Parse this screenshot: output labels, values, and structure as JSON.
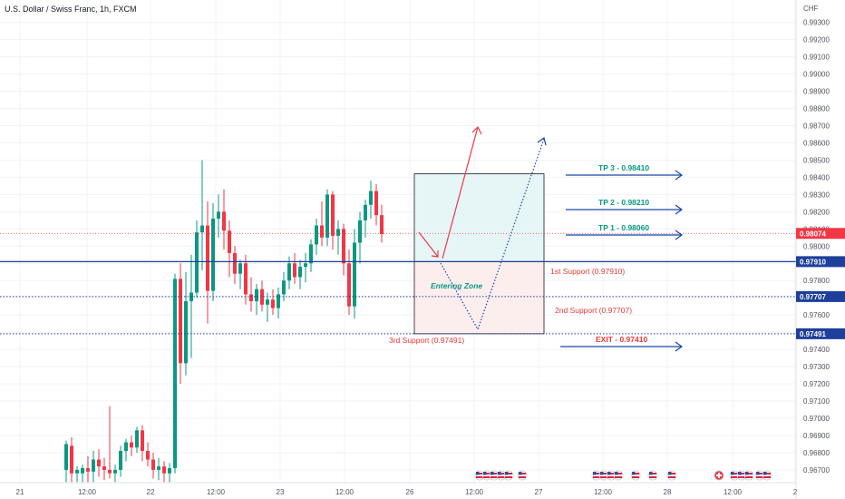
{
  "chart_data": {
    "type": "candlestick",
    "title": "U.S. Dollar / Swiss Franc, 1h, FXCM",
    "currency": "CHF",
    "ylim": [
      0.966,
      0.9944
    ],
    "y_ticks": [
      "0.99300",
      "0.99200",
      "0.99100",
      "0.99000",
      "0.98900",
      "0.98800",
      "0.98700",
      "0.98600",
      "0.98500",
      "0.98400",
      "0.98300",
      "0.98200",
      "0.98100",
      "0.98000",
      "0.97900",
      "0.97800",
      "0.97700",
      "0.97600",
      "0.97500",
      "0.97400",
      "0.97300",
      "0.97200",
      "0.97100",
      "0.97000",
      "0.96900",
      "0.96800",
      "0.96700"
    ],
    "x_ticks": [
      "21",
      "12:00",
      "22",
      "12:00",
      "23",
      "12:00",
      "26",
      "12:00",
      "27",
      "12:00",
      "28",
      "12:00",
      "2"
    ],
    "candles": [
      [
        0.967,
        0.9687,
        0.966,
        0.9685
      ],
      [
        0.9684,
        0.9689,
        0.966,
        0.9668
      ],
      [
        0.9668,
        0.9672,
        0.966,
        0.967
      ],
      [
        0.9668,
        0.9673,
        0.966,
        0.9671
      ],
      [
        0.9671,
        0.9678,
        0.966,
        0.9669
      ],
      [
        0.9669,
        0.9681,
        0.9662,
        0.9676
      ],
      [
        0.9676,
        0.9682,
        0.9666,
        0.9672
      ],
      [
        0.9672,
        0.9677,
        0.9664,
        0.967
      ],
      [
        0.967,
        0.9707,
        0.9665,
        0.9668
      ],
      [
        0.9668,
        0.9673,
        0.966,
        0.967
      ],
      [
        0.967,
        0.9684,
        0.9666,
        0.9681
      ],
      [
        0.9681,
        0.9688,
        0.9675,
        0.9686
      ],
      [
        0.9686,
        0.969,
        0.9678,
        0.9683
      ],
      [
        0.9683,
        0.9695,
        0.968,
        0.9693
      ],
      [
        0.9693,
        0.9696,
        0.9675,
        0.9681
      ],
      [
        0.9681,
        0.9686,
        0.9672,
        0.9676
      ],
      [
        0.9676,
        0.968,
        0.9665,
        0.967
      ],
      [
        0.967,
        0.9677,
        0.9664,
        0.9672
      ],
      [
        0.9672,
        0.9675,
        0.9663,
        0.9668
      ],
      [
        0.9668,
        0.9674,
        0.9662,
        0.9671
      ],
      [
        0.9671,
        0.9784,
        0.9668,
        0.9781
      ],
      [
        0.9781,
        0.979,
        0.972,
        0.9732
      ],
      [
        0.9732,
        0.9785,
        0.9725,
        0.9768
      ],
      [
        0.9768,
        0.9795,
        0.9735,
        0.9773
      ],
      [
        0.9773,
        0.9815,
        0.977,
        0.9808
      ],
      [
        0.9808,
        0.985,
        0.9786,
        0.9812
      ],
      [
        0.9812,
        0.9826,
        0.9755,
        0.9774
      ],
      [
        0.9774,
        0.9825,
        0.9768,
        0.9816
      ],
      [
        0.9816,
        0.983,
        0.9805,
        0.982
      ],
      [
        0.982,
        0.9833,
        0.9798,
        0.9809
      ],
      [
        0.9809,
        0.9815,
        0.9782,
        0.9796
      ],
      [
        0.9796,
        0.98,
        0.9778,
        0.9784
      ],
      [
        0.9784,
        0.9792,
        0.9775,
        0.979
      ],
      [
        0.979,
        0.9795,
        0.9766,
        0.9772
      ],
      [
        0.9772,
        0.9782,
        0.9762,
        0.9768
      ],
      [
        0.9768,
        0.9778,
        0.976,
        0.9775
      ],
      [
        0.9775,
        0.978,
        0.9762,
        0.9766
      ],
      [
        0.9766,
        0.9773,
        0.9756,
        0.9769
      ],
      [
        0.9769,
        0.9775,
        0.976,
        0.9764
      ],
      [
        0.9764,
        0.9776,
        0.9758,
        0.9772
      ],
      [
        0.9772,
        0.9785,
        0.9768,
        0.978
      ],
      [
        0.978,
        0.9794,
        0.9775,
        0.979
      ],
      [
        0.979,
        0.9796,
        0.9778,
        0.9782
      ],
      [
        0.9782,
        0.9792,
        0.9775,
        0.9788
      ],
      [
        0.9788,
        0.9796,
        0.9779,
        0.979
      ],
      [
        0.979,
        0.9804,
        0.9785,
        0.9801
      ],
      [
        0.9801,
        0.9816,
        0.9795,
        0.9812
      ],
      [
        0.9812,
        0.9826,
        0.98,
        0.9805
      ],
      [
        0.9805,
        0.9833,
        0.98,
        0.983
      ],
      [
        0.983,
        0.9832,
        0.9798,
        0.9806
      ],
      [
        0.9806,
        0.9815,
        0.9795,
        0.981
      ],
      [
        0.981,
        0.9813,
        0.9783,
        0.979
      ],
      [
        0.979,
        0.9798,
        0.976,
        0.9765
      ],
      [
        0.9765,
        0.981,
        0.9758,
        0.9802
      ],
      [
        0.9802,
        0.982,
        0.979,
        0.9815
      ],
      [
        0.9815,
        0.9827,
        0.9805,
        0.9824
      ],
      [
        0.9824,
        0.9838,
        0.9816,
        0.9832
      ],
      [
        0.9832,
        0.9836,
        0.9812,
        0.9818
      ],
      [
        0.9818,
        0.9824,
        0.9802,
        0.9807
      ]
    ],
    "current_price": {
      "value": 0.98074,
      "label": "0.98074"
    },
    "levels": [
      {
        "name": "1st Support",
        "value": 0.9791,
        "label": "1st Support (0.97910)",
        "tag": "0.97910",
        "style": "solid",
        "color": "#1e3f9a"
      },
      {
        "name": "2nd Support",
        "value": 0.97707,
        "label": "2nd Support (0.97707)",
        "tag": "0.97707",
        "style": "dotted",
        "color": "#1e3f9a"
      },
      {
        "name": "3rd Support",
        "value": 0.97491,
        "label": "3rd Support (0.97491)",
        "tag": "0.97491",
        "style": "dotted",
        "color": "#1e3f9a"
      }
    ],
    "targets": [
      {
        "label": "TP 3 - 0.98410",
        "color": "#089981"
      },
      {
        "label": "TP 2 - 0.98210",
        "color": "#089981"
      },
      {
        "label": "TP 1 - 0.98060",
        "color": "#089981"
      },
      {
        "label": "EXIT - 0.97410",
        "color": "#e53935"
      }
    ],
    "zone": {
      "label": "Entering Zone",
      "top": 0.9842,
      "mid": 0.9791,
      "bottom": 0.97491
    },
    "colors": {
      "up": "#089981",
      "down": "#f23645",
      "axis_line": "#1e3f9a",
      "arrow": "#1848a8"
    },
    "grid": true
  }
}
